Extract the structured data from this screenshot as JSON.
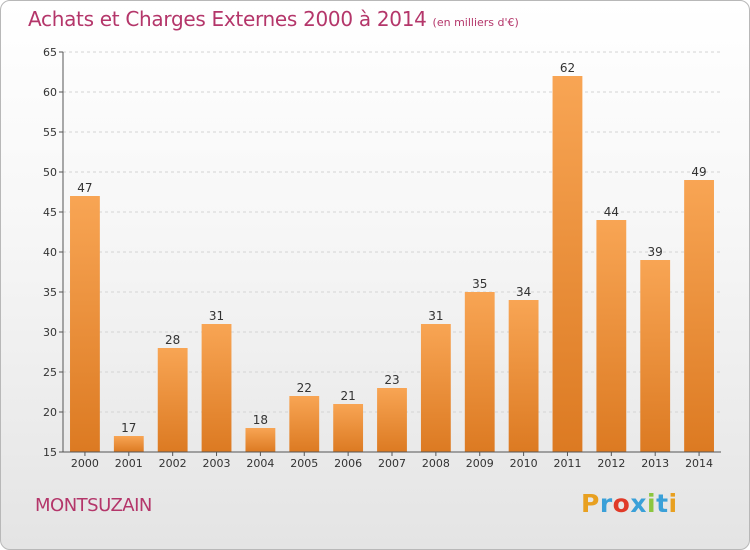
{
  "chart_data": {
    "type": "bar",
    "title": "Achats et Charges Externes 2000 à 2014",
    "subtitle": "(en milliers d'€)",
    "xlabel": "",
    "ylabel": "",
    "categories": [
      "2000",
      "2001",
      "2002",
      "2003",
      "2004",
      "2005",
      "2006",
      "2007",
      "2008",
      "2009",
      "2010",
      "2011",
      "2012",
      "2013",
      "2014"
    ],
    "values": [
      47,
      17,
      28,
      31,
      18,
      22,
      21,
      23,
      31,
      35,
      34,
      62,
      44,
      39,
      49
    ],
    "ylim": [
      15,
      65
    ],
    "yticks": [
      15,
      20,
      25,
      30,
      35,
      40,
      45,
      50,
      55,
      60,
      65
    ],
    "grid": "horizontal-dashed",
    "legend": "none",
    "bar_color_top": "#f8a554",
    "bar_color_bottom": "#dc7a22",
    "label_color": "#333333"
  },
  "footer": {
    "town": "MONTSUZAIN",
    "logo_letters": [
      "P",
      "r",
      "o",
      "x",
      "i",
      "t",
      "i"
    ],
    "logo_colors": [
      "#e8a020",
      "#3aa0d8",
      "#e03a28",
      "#3aa0d8",
      "#8cc63f",
      "#3aa0d8",
      "#e8a020"
    ]
  },
  "colors": {
    "title": "#b4366a",
    "axis": "#555555",
    "grid": "#d4d4d4"
  }
}
